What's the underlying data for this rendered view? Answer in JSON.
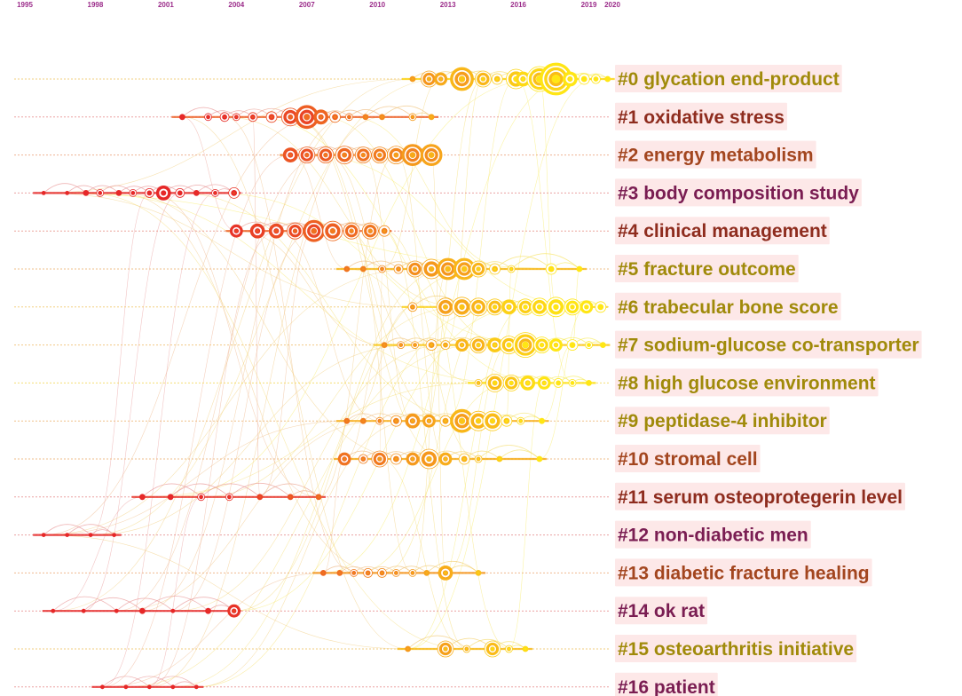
{
  "chart_data": {
    "type": "timeline",
    "title": "",
    "years": [
      "1995",
      "1998",
      "2001",
      "2004",
      "2007",
      "2010",
      "2013",
      "2016",
      "2019",
      "2020"
    ],
    "clusters": [
      {
        "id": 0,
        "label": "#0 glycation end-product",
        "color": "#a08a0a",
        "start": 1995.0,
        "end": 2020.0,
        "nodes": [
          [
            2011.5,
            3
          ],
          [
            2012.2,
            9
          ],
          [
            2012.7,
            7
          ],
          [
            2013.6,
            13
          ],
          [
            2014.5,
            9
          ],
          [
            2015.1,
            6
          ],
          [
            2015.9,
            11
          ],
          [
            2016.2,
            8
          ],
          [
            2016.9,
            14
          ],
          [
            2017.6,
            18
          ],
          [
            2018.2,
            8
          ],
          [
            2018.8,
            6
          ],
          [
            2019.3,
            5
          ],
          [
            2019.8,
            3
          ]
        ]
      },
      {
        "id": 1,
        "label": "#1 oxidative stress",
        "color": "#8e2c1e",
        "start": 1995.0,
        "end": 2012.5,
        "nodes": [
          [
            2001.7,
            3
          ],
          [
            2002.8,
            4
          ],
          [
            2003.5,
            5
          ],
          [
            2004.0,
            4
          ],
          [
            2004.7,
            5
          ],
          [
            2005.5,
            6
          ],
          [
            2006.3,
            10
          ],
          [
            2007.0,
            13
          ],
          [
            2007.6,
            8
          ],
          [
            2008.2,
            6
          ],
          [
            2008.8,
            4
          ],
          [
            2009.5,
            3
          ],
          [
            2010.2,
            3
          ],
          [
            2011.5,
            4
          ],
          [
            2012.3,
            3
          ]
        ]
      },
      {
        "id": 2,
        "label": "#2 energy metabolism",
        "color": "#a3461f",
        "start": 1995.0,
        "end": 2013.0,
        "nodes": [
          [
            2006.3,
            8
          ],
          [
            2007.0,
            9
          ],
          [
            2007.8,
            9
          ],
          [
            2008.6,
            10
          ],
          [
            2009.4,
            9
          ],
          [
            2010.1,
            9
          ],
          [
            2010.8,
            10
          ],
          [
            2011.5,
            12
          ],
          [
            2012.3,
            12
          ]
        ]
      },
      {
        "id": 3,
        "label": "#3 body composition study",
        "color": "#7a1d52",
        "start": 1995.0,
        "end": 2004.5,
        "nodes": [
          [
            1995.8,
            2
          ],
          [
            1996.8,
            2
          ],
          [
            1997.6,
            3
          ],
          [
            1998.2,
            4
          ],
          [
            1999.0,
            3
          ],
          [
            1999.6,
            4
          ],
          [
            2000.3,
            5
          ],
          [
            2000.9,
            8
          ],
          [
            2001.6,
            5
          ],
          [
            2002.3,
            3
          ],
          [
            2003.1,
            4
          ],
          [
            2003.9,
            6
          ]
        ]
      },
      {
        "id": 4,
        "label": "#4 clinical management",
        "color": "#8e2c1e",
        "start": 1995.0,
        "end": 2010.5,
        "nodes": [
          [
            2004.0,
            7
          ],
          [
            2004.9,
            8
          ],
          [
            2005.7,
            8
          ],
          [
            2006.5,
            9
          ],
          [
            2007.3,
            12
          ],
          [
            2008.1,
            11
          ],
          [
            2008.9,
            9
          ],
          [
            2009.7,
            9
          ],
          [
            2010.3,
            6
          ]
        ]
      },
      {
        "id": 5,
        "label": "#5 fracture outcome",
        "color": "#a08a0a",
        "start": 1995.0,
        "end": 2019.3,
        "nodes": [
          [
            2008.7,
            3
          ],
          [
            2009.4,
            3
          ],
          [
            2010.2,
            4
          ],
          [
            2010.9,
            5
          ],
          [
            2011.6,
            9
          ],
          [
            2012.3,
            11
          ],
          [
            2013.0,
            12
          ],
          [
            2013.7,
            12
          ],
          [
            2014.3,
            9
          ],
          [
            2015.0,
            6
          ],
          [
            2015.7,
            4
          ],
          [
            2017.4,
            6
          ],
          [
            2018.6,
            3
          ]
        ]
      },
      {
        "id": 6,
        "label": "#6 trabecular bone score",
        "color": "#a08a0a",
        "start": 1995.0,
        "end": 2020.0,
        "nodes": [
          [
            2011.5,
            5
          ],
          [
            2012.9,
            10
          ],
          [
            2013.6,
            11
          ],
          [
            2014.3,
            10
          ],
          [
            2015.0,
            9
          ],
          [
            2015.6,
            8
          ],
          [
            2016.3,
            9
          ],
          [
            2016.9,
            10
          ],
          [
            2017.6,
            11
          ],
          [
            2018.3,
            9
          ],
          [
            2018.9,
            7
          ],
          [
            2019.5,
            6
          ]
        ]
      },
      {
        "id": 7,
        "label": "#7 sodium-glucose co-transporter",
        "color": "#a08a0a",
        "start": 1995.0,
        "end": 2020.0,
        "nodes": [
          [
            2010.3,
            3
          ],
          [
            2011.0,
            4
          ],
          [
            2011.6,
            4
          ],
          [
            2012.3,
            6
          ],
          [
            2012.9,
            5
          ],
          [
            2013.6,
            7
          ],
          [
            2014.3,
            9
          ],
          [
            2015.0,
            8
          ],
          [
            2015.6,
            10
          ],
          [
            2016.3,
            14
          ],
          [
            2017.0,
            9
          ],
          [
            2017.6,
            7
          ],
          [
            2018.3,
            6
          ],
          [
            2019.0,
            4
          ],
          [
            2019.6,
            3
          ]
        ]
      },
      {
        "id": 8,
        "label": "#8 high glucose environment",
        "color": "#a08a0a",
        "start": 1995.0,
        "end": 2020.0,
        "nodes": [
          [
            2014.3,
            4
          ],
          [
            2015.0,
            10
          ],
          [
            2015.7,
            9
          ],
          [
            2016.4,
            8
          ],
          [
            2017.1,
            7
          ],
          [
            2017.7,
            5
          ],
          [
            2018.3,
            4
          ],
          [
            2019.0,
            3
          ]
        ]
      },
      {
        "id": 9,
        "label": "#9 peptidase-4 inhibitor",
        "color": "#a08a0a",
        "start": 1995.0,
        "end": 2019.5,
        "nodes": [
          [
            2008.7,
            3
          ],
          [
            2009.4,
            3
          ],
          [
            2010.1,
            4
          ],
          [
            2010.8,
            6
          ],
          [
            2011.5,
            8
          ],
          [
            2012.2,
            7
          ],
          [
            2012.9,
            6
          ],
          [
            2013.6,
            13
          ],
          [
            2014.3,
            11
          ],
          [
            2014.9,
            11
          ],
          [
            2015.5,
            6
          ],
          [
            2016.1,
            4
          ],
          [
            2017.0,
            3
          ]
        ]
      },
      {
        "id": 10,
        "label": "#10 stromal cell",
        "color": "#a3461f",
        "start": 1995.0,
        "end": 2017.5,
        "nodes": [
          [
            2008.6,
            7
          ],
          [
            2009.4,
            5
          ],
          [
            2010.1,
            9
          ],
          [
            2010.8,
            6
          ],
          [
            2011.5,
            7
          ],
          [
            2012.2,
            11
          ],
          [
            2012.9,
            7
          ],
          [
            2013.7,
            6
          ],
          [
            2014.3,
            4
          ],
          [
            2015.2,
            3
          ],
          [
            2016.9,
            3
          ]
        ]
      },
      {
        "id": 11,
        "label": "#11 serum osteoprotegerin level",
        "color": "#8e2c1e",
        "start": 1995.0,
        "end": 2009.0,
        "nodes": [
          [
            2000.0,
            3
          ],
          [
            2001.2,
            3
          ],
          [
            2002.5,
            4
          ],
          [
            2003.7,
            4
          ],
          [
            2005.0,
            3
          ],
          [
            2006.3,
            3
          ],
          [
            2007.5,
            3
          ]
        ]
      },
      {
        "id": 12,
        "label": "#12 non-diabetic men",
        "color": "#7a1d52",
        "start": 1995.0,
        "end": 2000.5,
        "nodes": [
          [
            1995.8,
            2
          ],
          [
            1996.8,
            2
          ],
          [
            1997.8,
            2
          ],
          [
            1998.8,
            2
          ]
        ]
      },
      {
        "id": 13,
        "label": "#13 diabetic fracture healing",
        "color": "#a3461f",
        "start": 1995.0,
        "end": 2015.8,
        "nodes": [
          [
            2007.7,
            3
          ],
          [
            2008.4,
            3
          ],
          [
            2009.0,
            4
          ],
          [
            2009.6,
            5
          ],
          [
            2010.2,
            5
          ],
          [
            2010.8,
            4
          ],
          [
            2011.5,
            4
          ],
          [
            2012.1,
            3
          ],
          [
            2012.9,
            8
          ],
          [
            2014.3,
            3
          ]
        ]
      },
      {
        "id": 14,
        "label": "#14 ok rat",
        "color": "#7a1d52",
        "start": 1995.0,
        "end": 2004.2,
        "nodes": [
          [
            1996.2,
            2
          ],
          [
            1997.5,
            2
          ],
          [
            1998.9,
            2
          ],
          [
            2000.0,
            3
          ],
          [
            2001.3,
            2
          ],
          [
            2002.8,
            3
          ],
          [
            2003.9,
            7
          ]
        ]
      },
      {
        "id": 15,
        "label": "#15 osteoarthritis initiative",
        "color": "#a08a0a",
        "start": 1995.0,
        "end": 2019.5,
        "nodes": [
          [
            2011.3,
            3
          ],
          [
            2012.9,
            9
          ],
          [
            2013.8,
            4
          ],
          [
            2014.9,
            9
          ],
          [
            2015.6,
            4
          ],
          [
            2016.3,
            3
          ]
        ]
      },
      {
        "id": 16,
        "label": "#16 patient",
        "color": "#7a1d52",
        "start": 1995.0,
        "end": 2020.0,
        "nodes": [
          [
            1998.3,
            2
          ],
          [
            1999.3,
            2
          ],
          [
            2000.3,
            2
          ],
          [
            2001.3,
            2
          ],
          [
            2002.3,
            2
          ]
        ]
      }
    ]
  }
}
